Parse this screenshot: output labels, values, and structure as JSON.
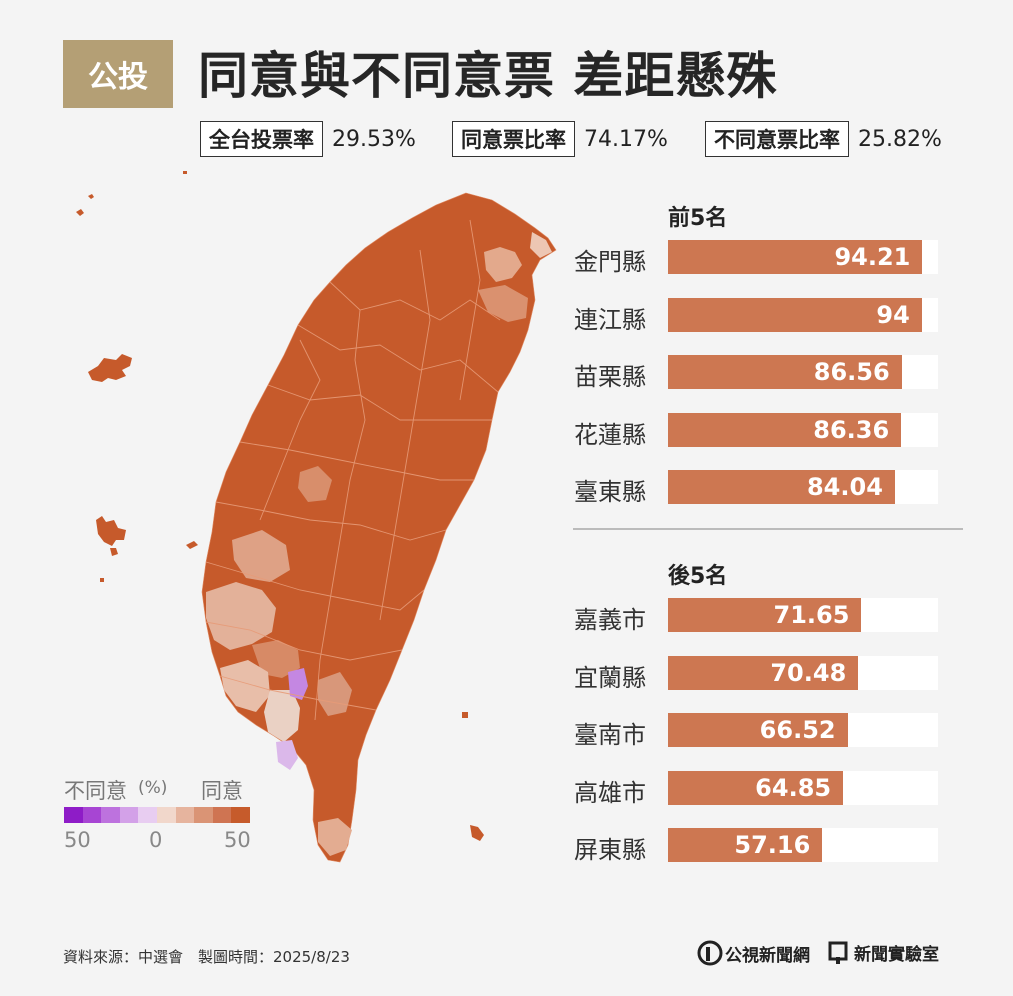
{
  "header": {
    "badge": "公投",
    "title": "同意與不同意票 差距懸殊",
    "stats": [
      {
        "label": "全台投票率",
        "value": "29.53%"
      },
      {
        "label": "同意票比率",
        "value": "74.17%"
      },
      {
        "label": "不同意票比率",
        "value": "25.82%"
      }
    ]
  },
  "legend": {
    "disagree_label": "不同意",
    "unit": "(%)",
    "agree_label": "同意",
    "ticks": [
      "50",
      "0",
      "50"
    ],
    "colors": [
      "#8e1cc7",
      "#a745d3",
      "#bd72de",
      "#d3a1e8",
      "#e8cdf1",
      "#f1d7cb",
      "#e6b49e",
      "#da9475",
      "#cf7452",
      "#c65b2b"
    ]
  },
  "chart_data": {
    "type": "bar",
    "groups": [
      {
        "heading": "前5名",
        "categories": [
          "金門縣",
          "連江縣",
          "苗栗縣",
          "花蓮縣",
          "臺東縣"
        ],
        "values": [
          94.21,
          94,
          86.56,
          86.36,
          84.04
        ]
      },
      {
        "heading": "後5名",
        "categories": [
          "嘉義市",
          "宜蘭縣",
          "臺南市",
          "高雄市",
          "屏東縣"
        ],
        "values": [
          71.65,
          70.48,
          66.52,
          64.85,
          57.16
        ]
      }
    ],
    "xlim": [
      0,
      100
    ],
    "bar_color": "#cd7751"
  },
  "footer": {
    "source": "資料來源：中選會　製圖時間：2025/8/23",
    "logo_pts": "公視新聞網",
    "logo_lab": "新聞實驗室"
  },
  "colors": {
    "map_main": "#c65a2b",
    "badge": "#b49f75",
    "background": "#f4f4f4"
  }
}
